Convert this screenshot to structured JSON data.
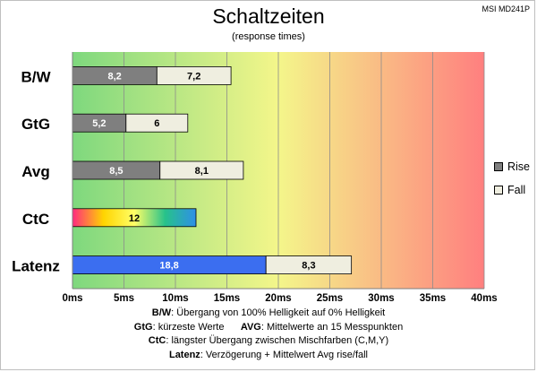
{
  "model_tag": "MSI MD241P",
  "chart_data": {
    "type": "bar",
    "orientation": "horizontal",
    "stacked": true,
    "title": "Schaltzeiten",
    "subtitle": "(response times)",
    "categories": [
      "B/W",
      "GtG",
      "Avg",
      "CtC",
      "Latenz"
    ],
    "series": [
      {
        "name": "Rise",
        "values": [
          8.2,
          5.2,
          8.5,
          12,
          18.8
        ]
      },
      {
        "name": "Fall",
        "values": [
          7.2,
          6,
          8.1,
          null,
          8.3
        ]
      }
    ],
    "data_labels": {
      "Rise": [
        "8,2",
        "5,2",
        "8,5",
        "12",
        "18,8"
      ],
      "Fall": [
        "7,2",
        "6",
        "8,1",
        "",
        "8,3"
      ]
    },
    "x_unit": "ms",
    "xlim": [
      0,
      40
    ],
    "x_ticks": [
      0,
      5,
      10,
      15,
      20,
      25,
      30,
      35,
      40
    ],
    "x_tick_labels": [
      "0ms",
      "5ms",
      "10ms",
      "15ms",
      "20ms",
      "25ms",
      "30ms",
      "35ms",
      "40ms"
    ],
    "grid": true,
    "legend_position": "right",
    "background_gradient": [
      "#7ed87e",
      "#f4f68a",
      "#ff7f7f"
    ],
    "colors": {
      "rise": "#7f7f7f",
      "fall": "#efeee0",
      "latenz_rise": "#3b6ef0",
      "ctc_gradient": [
        "#ff2a7f",
        "#ffd400",
        "#ffff66",
        "#27c28a",
        "#2f8fe8"
      ]
    }
  },
  "legend": {
    "rise": "Rise",
    "fall": "Fall"
  },
  "footnotes": [
    {
      "key": "B/W",
      "text": ":  Übergang von 100% Helligkeit auf 0% Helligkeit"
    },
    {
      "key": "GtG",
      "text": ": kürzeste  Werte",
      "key2": "AVG",
      "text2": ": Mittelwerte  an 15 Messpunkten"
    },
    {
      "key": "CtC",
      "text": ": längster Übergang  zwischen Mischfarben (C,M,Y)"
    },
    {
      "key": "Latenz",
      "text": ": Verzögerung  + Mittelwert Avg rise/fall"
    }
  ]
}
